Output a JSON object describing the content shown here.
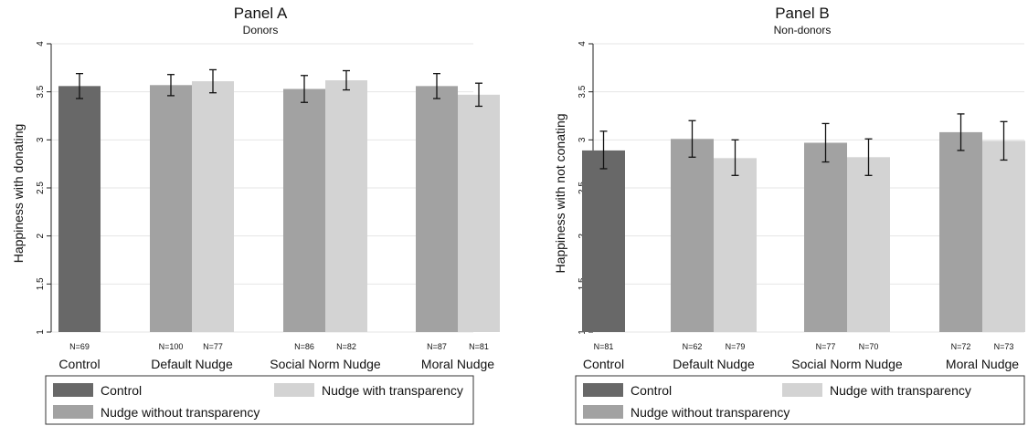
{
  "colors": {
    "control": "#686868",
    "nudge_without_transparency": "#a2a2a2",
    "nudge_with_transparency": "#d3d3d3",
    "grid": "#e6e6e6",
    "axis": "#222222",
    "error_bar": "#111111"
  },
  "chart_data": [
    {
      "type": "bar",
      "title": "Panel A",
      "subtitle": "Donors",
      "ylabel": "Happiness with donating",
      "xlabel": "",
      "ylim": [
        1,
        4
      ],
      "yticks": [
        1,
        1.5,
        2,
        2.5,
        3,
        3.5,
        4
      ],
      "grid": true,
      "error_bars": true,
      "categories": [
        "Control",
        "Default Nudge",
        "Social Norm Nudge",
        "Moral Nudge"
      ],
      "bars": [
        {
          "category": "Control",
          "series": "control",
          "value": 3.56,
          "ci": [
            3.43,
            3.69
          ],
          "n": "N=69"
        },
        {
          "category": "Default Nudge",
          "series": "nudge_without_transparency",
          "value": 3.57,
          "ci": [
            3.46,
            3.68
          ],
          "n": "N=100"
        },
        {
          "category": "Default Nudge",
          "series": "nudge_with_transparency",
          "value": 3.61,
          "ci": [
            3.49,
            3.73
          ],
          "n": "N=77"
        },
        {
          "category": "Social Norm Nudge",
          "series": "nudge_without_transparency",
          "value": 3.53,
          "ci": [
            3.39,
            3.67
          ],
          "n": "N=86"
        },
        {
          "category": "Social Norm Nudge",
          "series": "nudge_with_transparency",
          "value": 3.62,
          "ci": [
            3.52,
            3.72
          ],
          "n": "N=82"
        },
        {
          "category": "Moral Nudge",
          "series": "nudge_without_transparency",
          "value": 3.56,
          "ci": [
            3.43,
            3.69
          ],
          "n": "N=87"
        },
        {
          "category": "Moral Nudge",
          "series": "nudge_with_transparency",
          "value": 3.47,
          "ci": [
            3.35,
            3.59
          ],
          "n": "N=81"
        }
      ],
      "legend": {
        "position": "bottom",
        "entries": [
          {
            "series": "control",
            "label": "Control"
          },
          {
            "series": "nudge_with_transparency",
            "label": "Nudge with transparency"
          },
          {
            "series": "nudge_without_transparency",
            "label": "Nudge without transparency"
          }
        ]
      }
    },
    {
      "type": "bar",
      "title": "Panel B",
      "subtitle": "Non-donors",
      "ylabel": "Happiness with not conating",
      "xlabel": "",
      "ylim": [
        1,
        4
      ],
      "yticks": [
        1,
        1.5,
        2,
        2.5,
        3,
        3.5,
        4
      ],
      "grid": true,
      "error_bars": true,
      "categories": [
        "Control",
        "Default Nudge",
        "Social Norm Nudge",
        "Moral Nudge"
      ],
      "bars": [
        {
          "category": "Control",
          "series": "control",
          "value": 2.89,
          "ci": [
            2.7,
            3.09
          ],
          "n": "N=81"
        },
        {
          "category": "Default Nudge",
          "series": "nudge_without_transparency",
          "value": 3.01,
          "ci": [
            2.82,
            3.2
          ],
          "n": "N=62"
        },
        {
          "category": "Default Nudge",
          "series": "nudge_with_transparency",
          "value": 2.81,
          "ci": [
            2.63,
            3.0
          ],
          "n": "N=79"
        },
        {
          "category": "Social Norm Nudge",
          "series": "nudge_without_transparency",
          "value": 2.97,
          "ci": [
            2.77,
            3.17
          ],
          "n": "N=77"
        },
        {
          "category": "Social Norm Nudge",
          "series": "nudge_with_transparency",
          "value": 2.82,
          "ci": [
            2.63,
            3.01
          ],
          "n": "N=70"
        },
        {
          "category": "Moral Nudge",
          "series": "nudge_without_transparency",
          "value": 3.08,
          "ci": [
            2.89,
            3.27
          ],
          "n": "N=72"
        },
        {
          "category": "Moral Nudge",
          "series": "nudge_with_transparency",
          "value": 2.99,
          "ci": [
            2.79,
            3.19
          ],
          "n": "N=73"
        }
      ],
      "legend": {
        "position": "bottom",
        "entries": [
          {
            "series": "control",
            "label": "Control"
          },
          {
            "series": "nudge_with_transparency",
            "label": "Nudge with transparency"
          },
          {
            "series": "nudge_without_transparency",
            "label": "Nudge without transparency"
          }
        ]
      }
    }
  ]
}
